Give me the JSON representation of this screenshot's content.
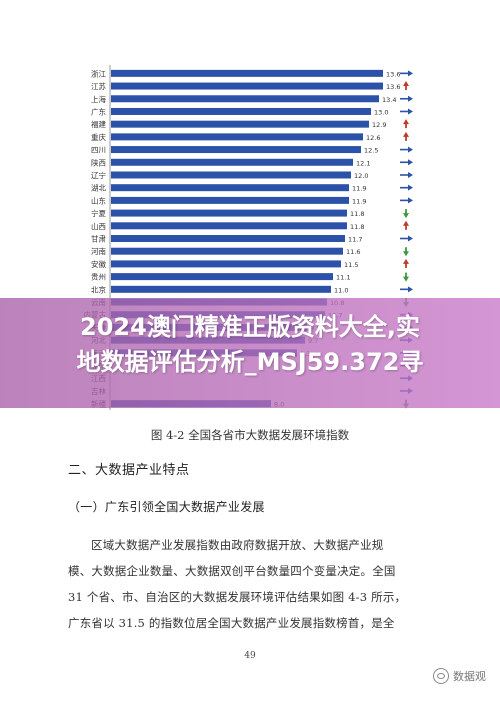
{
  "chart_data": {
    "type": "bar",
    "title": "",
    "categories": [
      "浙江",
      "江苏",
      "上海",
      "广东",
      "福建",
      "重庆",
      "四川",
      "陕西",
      "辽宁",
      "湖北",
      "山东",
      "宁夏",
      "山西",
      "甘肃",
      "河南",
      "安徽",
      "贵州",
      "北京",
      "云南",
      "内蒙古",
      "天津",
      "河北",
      "海南",
      "湖南",
      "江西",
      "吉林",
      "新疆"
    ],
    "values": [
      13.6,
      13.6,
      13.4,
      13.0,
      12.9,
      12.6,
      12.5,
      12.1,
      12.0,
      11.9,
      11.9,
      11.8,
      11.8,
      11.7,
      11.6,
      11.5,
      11.1,
      11.0,
      10.8,
      10.7,
      9.8,
      9.7,
      9.3,
      null,
      null,
      null,
      8.0
    ],
    "value_labels": [
      "13.6",
      "13.6",
      "13.4",
      "13.0",
      "12.9",
      "12.6",
      "12.5",
      "12.1",
      "12.0",
      "11.9",
      "11.9",
      "11.8",
      "11.8",
      "11.7",
      "11.6",
      "11.5",
      "11.1",
      "11.0",
      "10.8",
      "10.7",
      "9.8",
      "9.7",
      "9.3",
      "",
      "",
      "",
      "8.0"
    ],
    "trend": [
      "flat",
      "up",
      "flat",
      "flat",
      "up",
      "up",
      "flat",
      "flat",
      "flat",
      "flat",
      "flat",
      "down",
      "up",
      "flat",
      "down",
      "up",
      "down",
      "flat",
      "down",
      "flat",
      "flat",
      "flat",
      "flat",
      "flat",
      "flat",
      "flat",
      "down"
    ],
    "xlim": [
      0,
      14
    ],
    "colors": {
      "bar": "#2b52a8",
      "arrow_flat": "#2b52a8",
      "arrow_up": "#c0392b",
      "arrow_down": "#3a9a3a"
    }
  },
  "figure": {
    "caption": "图 4-2 全国各省市大数据发展环境指数"
  },
  "section": {
    "title": "二、大数据产业特点"
  },
  "subsection": {
    "title": "（一）广东引领全国大数据产业发展"
  },
  "body": {
    "lines": [
      "区域大数据产业发展指数由政府数据开放、大数据产业规",
      "模、大数据企业数量、大数据双创平台数量四个变量决定。全国",
      "31 个省、市、自治区的大数据发展环境评估结果如图 4-3 所示，",
      "广东省以 31.5 的指数位居全国大数据产业发展指数榜首，是全"
    ]
  },
  "page": {
    "number": "49"
  },
  "overlay": {
    "line1": "2024澳门精准正版资料大全,实",
    "line2": "地数据评估分析_MSJ59.372寻"
  },
  "watermark": {
    "text": "数据观"
  }
}
